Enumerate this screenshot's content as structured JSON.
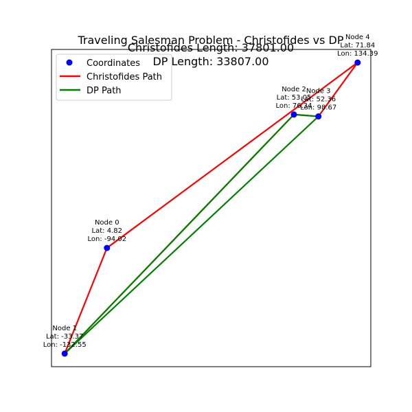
{
  "chart_data": {
    "type": "scatter",
    "title_lines": [
      "Traveling Salesman Problem - Christofides vs DP",
      "Christofides Length: 37801.00",
      "DP Length: 33807.00"
    ],
    "xlabel": "",
    "ylabel": "",
    "axes_visible": false,
    "grid": false,
    "legend_position": "top-left",
    "nodes": [
      {
        "id": 0,
        "name": "Node 0",
        "lat": 4.82,
        "lon": -94.02,
        "lat_text": "Lat: 4.82",
        "lon_text": "Lon: -94.02"
      },
      {
        "id": 1,
        "name": "Node 1",
        "lat": -33.37,
        "lon": -132.55,
        "lat_text": "Lat: -33.37",
        "lon_text": "Lon: -132.55"
      },
      {
        "id": 2,
        "name": "Node 2",
        "lat": 53.05,
        "lon": 76.34,
        "lat_text": "Lat: 53.05",
        "lon_text": "Lon: 76.34"
      },
      {
        "id": 3,
        "name": "Node 3",
        "lat": 52.36,
        "lon": 98.67,
        "lat_text": "Lat: 52.36",
        "lon_text": "Lon: 98.67"
      },
      {
        "id": 4,
        "name": "Node 4",
        "lat": 71.84,
        "lon": 134.39,
        "lat_text": "Lat: 71.84",
        "lon_text": "Lon: 134.39"
      }
    ],
    "series": [
      {
        "name": "Coordinates",
        "kind": "points",
        "color": "#0000ff"
      },
      {
        "name": "Christofides Path",
        "kind": "path",
        "color": "#ff0000",
        "order": [
          1,
          0,
          4,
          3,
          2,
          1
        ]
      },
      {
        "name": "DP Path",
        "kind": "path",
        "color": "#008000",
        "order": [
          1,
          2,
          3,
          1
        ]
      }
    ]
  }
}
